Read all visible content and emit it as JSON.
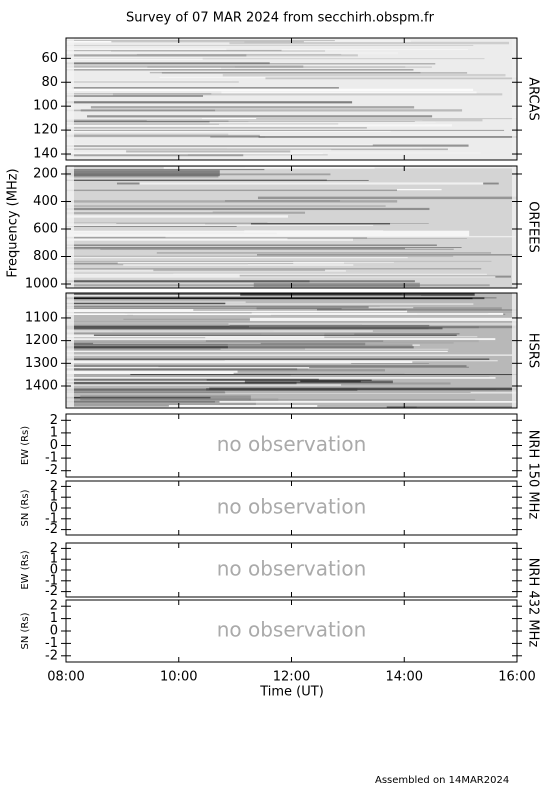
{
  "title": "Survey of 07 MAR 2024 from secchirh.obspm.fr",
  "footer": "Assembled on  14MAR2024",
  "x_axis": {
    "label": "Time (UT)",
    "xlim": [
      8,
      16
    ],
    "xticks": [
      {
        "value": 8,
        "label": "08:00"
      },
      {
        "value": 10,
        "label": "10:00"
      },
      {
        "value": 12,
        "label": "12:00"
      },
      {
        "value": 14,
        "label": "14:00"
      },
      {
        "value": 16,
        "label": "16:00"
      }
    ]
  },
  "spectra_ylabel": "Frequency (MHz)",
  "chart_data": [
    {
      "type": "spectrogram",
      "side_label": "ARCAS",
      "ylim": [
        145,
        43
      ],
      "yticks": [
        60,
        80,
        100,
        120,
        140
      ]
    },
    {
      "type": "spectrogram",
      "side_label": "ORFEES",
      "ylim": [
        1029,
        142
      ],
      "yticks": [
        200,
        400,
        600,
        800,
        1000
      ]
    },
    {
      "type": "spectrogram",
      "side_label": "HSRS",
      "ylim": [
        1497,
        990
      ],
      "yticks": [
        1100,
        1200,
        1300,
        1400
      ]
    },
    {
      "type": "empty",
      "ylabel": "EW (Rs)",
      "side_label": "NRH 150 MHz",
      "annotation": "no observation",
      "ylim": [
        -2.5,
        2.5
      ],
      "yticks": [
        -2,
        -1,
        0,
        1,
        2
      ]
    },
    {
      "type": "empty",
      "ylabel": "SN (Rs)",
      "annotation": "no observation",
      "ylim": [
        -2.5,
        2.5
      ],
      "yticks": [
        -2,
        -1,
        0,
        1,
        2
      ]
    },
    {
      "type": "empty",
      "ylabel": "EW (Rs)",
      "side_label": "NRH 432 MHz",
      "annotation": "no observation",
      "ylim": [
        -2.5,
        2.5
      ],
      "yticks": [
        -2,
        -1,
        0,
        1,
        2
      ]
    },
    {
      "type": "empty",
      "ylabel": "SN (Rs)",
      "annotation": "no observation",
      "ylim": [
        -2.5,
        2.5
      ],
      "yticks": [
        -2,
        -1,
        0,
        1,
        2
      ]
    }
  ]
}
